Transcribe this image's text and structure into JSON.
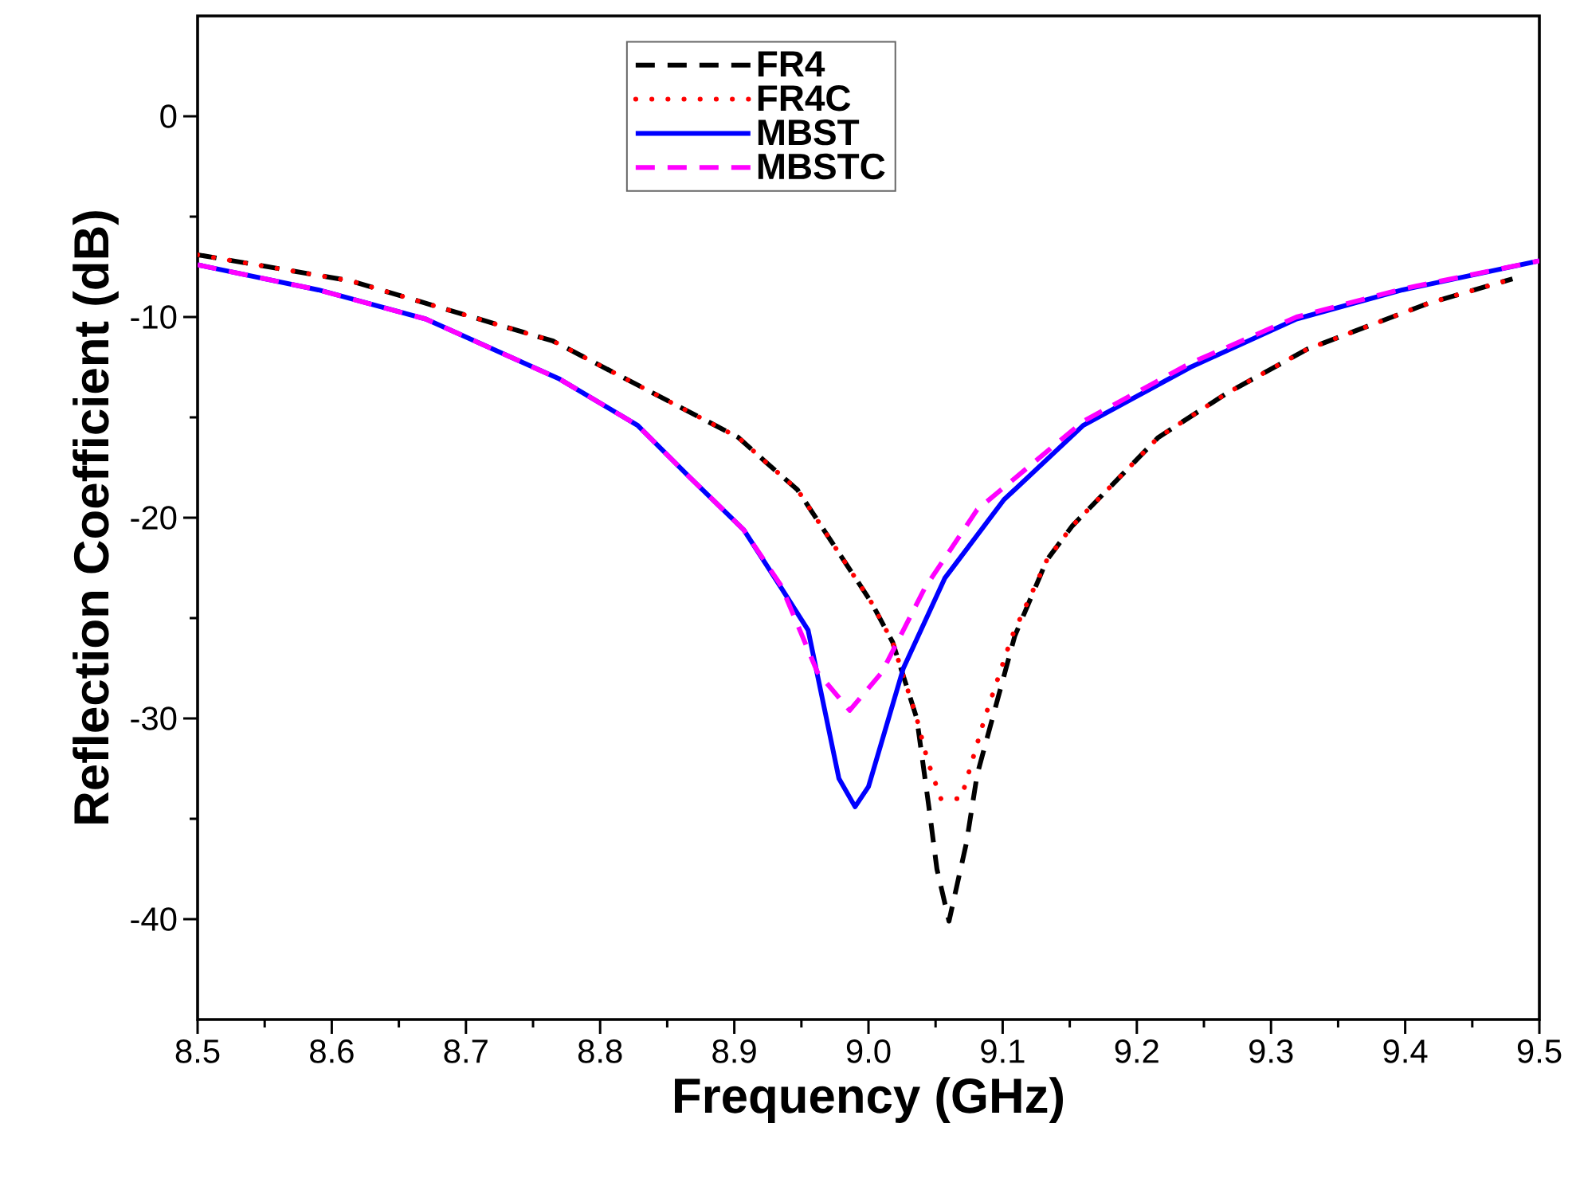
{
  "chart_data": {
    "type": "line",
    "xlabel": "Frequency (GHz)",
    "ylabel": "Reflection Coefficient (dB)",
    "xlim": [
      8.5,
      9.5
    ],
    "ylim": [
      -45,
      5
    ],
    "xticks": [
      {
        "value": 8.5,
        "label": "8.5"
      },
      {
        "value": 8.6,
        "label": "8.6"
      },
      {
        "value": 8.7,
        "label": "8.7"
      },
      {
        "value": 8.8,
        "label": "8.8"
      },
      {
        "value": 8.9,
        "label": "8.9"
      },
      {
        "value": 9.0,
        "label": "9.0"
      },
      {
        "value": 9.1,
        "label": "9.1"
      },
      {
        "value": 9.2,
        "label": "9.2"
      },
      {
        "value": 9.3,
        "label": "9.3"
      },
      {
        "value": 9.4,
        "label": "9.4"
      },
      {
        "value": 9.5,
        "label": "9.5"
      }
    ],
    "yticks": [
      -40,
      -30,
      -20,
      -10,
      0
    ],
    "grid": false,
    "legend": "top",
    "marker": "none",
    "series": [
      {
        "name": "FR4",
        "color": "#000000",
        "line_style": "dashed",
        "x": [
          8.5,
          8.614,
          8.765,
          8.903,
          8.923,
          8.947,
          9.002,
          9.018,
          9.036,
          9.045,
          9.051,
          9.06,
          9.073,
          9.081,
          9.109,
          9.133,
          9.152,
          9.216,
          9.267,
          9.327,
          9.418,
          9.48
        ],
        "values": [
          -6.9,
          -8.2,
          -11.2,
          -16.0,
          -17.2,
          -18.6,
          -24.2,
          -26.2,
          -30.0,
          -34.4,
          -37.5,
          -40.1,
          -36.2,
          -32.8,
          -25.9,
          -22.1,
          -20.4,
          -16.0,
          -13.8,
          -11.6,
          -9.3,
          -8.1
        ]
      },
      {
        "name": "FR4C",
        "color": "#ff0000",
        "line_style": "dotted",
        "x": [
          8.5,
          8.614,
          8.765,
          8.903,
          8.923,
          8.947,
          9.002,
          9.018,
          9.036,
          9.044,
          9.054,
          9.069,
          9.087,
          9.107,
          9.133,
          9.152,
          9.216,
          9.267,
          9.327,
          9.418,
          9.48
        ],
        "values": [
          -6.9,
          -8.2,
          -11.2,
          -16.0,
          -17.2,
          -18.6,
          -24.2,
          -26.2,
          -30.0,
          -32.1,
          -34.0,
          -34.0,
          -29.9,
          -25.9,
          -22.1,
          -20.4,
          -16.0,
          -13.8,
          -11.6,
          -9.3,
          -8.1
        ]
      },
      {
        "name": "MBST",
        "color": "#0000ff",
        "line_style": "solid",
        "x": [
          8.5,
          8.59,
          8.67,
          8.77,
          8.828,
          8.867,
          8.907,
          8.935,
          8.955,
          8.978,
          8.99,
          9.0,
          9.026,
          9.057,
          9.101,
          9.16,
          9.24,
          9.319,
          9.398,
          9.5
        ],
        "values": [
          -7.4,
          -8.65,
          -10.1,
          -13.1,
          -15.4,
          -18.0,
          -20.6,
          -23.5,
          -25.6,
          -33.0,
          -34.4,
          -33.4,
          -27.5,
          -23.0,
          -19.1,
          -15.4,
          -12.5,
          -10.1,
          -8.65,
          -7.2
        ]
      },
      {
        "name": "MBSTC",
        "color": "#ff00ff",
        "line_style": "dashed",
        "x": [
          8.5,
          8.59,
          8.67,
          8.77,
          8.828,
          8.867,
          8.907,
          8.935,
          8.962,
          8.986,
          9.01,
          9.042,
          9.081,
          9.16,
          9.24,
          9.319,
          9.398,
          9.5
        ],
        "values": [
          -7.4,
          -8.65,
          -10.1,
          -13.1,
          -15.4,
          -18.0,
          -20.6,
          -23.4,
          -27.7,
          -29.6,
          -27.7,
          -23.5,
          -19.6,
          -15.2,
          -12.3,
          -10.0,
          -8.6,
          -7.2
        ]
      }
    ]
  }
}
